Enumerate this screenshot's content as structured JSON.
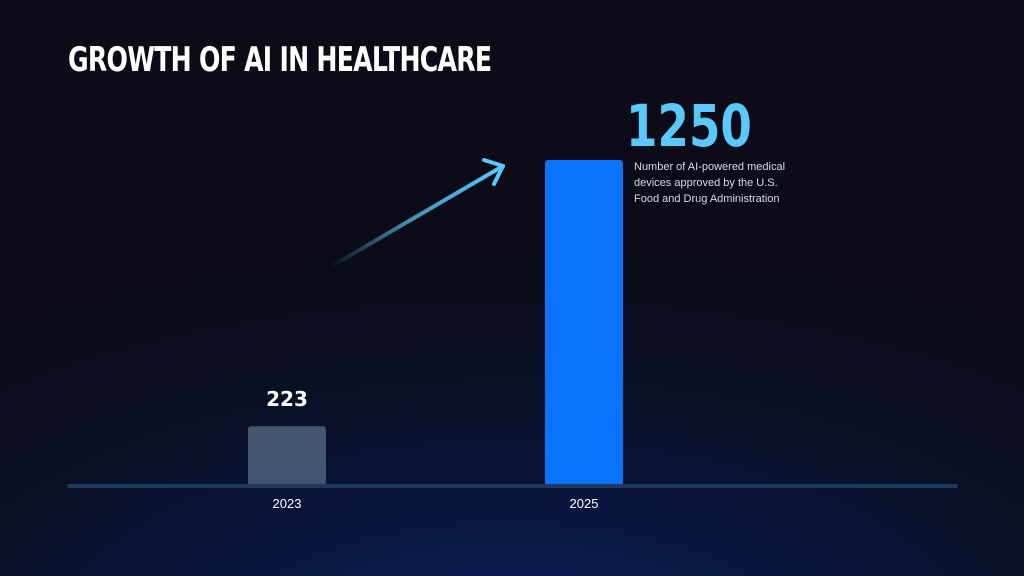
{
  "slide": {
    "title": "GROWTH OF AI IN HEALTHCARE"
  },
  "colors": {
    "background": "#0b0c17",
    "bar_2023": "#44556f",
    "bar_2025": "#0a74ff",
    "accent": "#5ac8fa",
    "baseline": "#1d3a5e"
  },
  "chart_data": {
    "type": "bar",
    "title": "GROWTH OF AI IN HEALTHCARE",
    "categories": [
      "2023",
      "2025"
    ],
    "values": [
      223,
      1250
    ],
    "value_labels": [
      "223",
      "1250"
    ],
    "bar_colors": [
      "#44556f",
      "#0a74ff"
    ],
    "ylim": [
      0,
      1250
    ],
    "grid": false,
    "highlight": {
      "category": "2025",
      "value_text": "1250",
      "description": "Number of AI-powered medical devices approved by the U.S. Food and Drug Administration"
    },
    "trend_arrow": true
  }
}
